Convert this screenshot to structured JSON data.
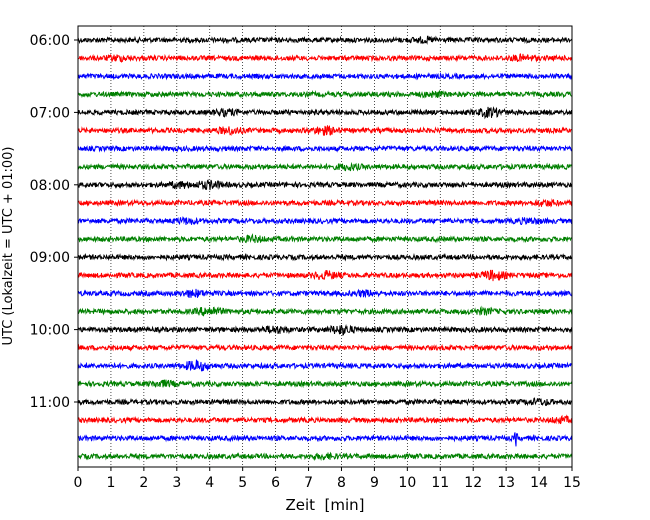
{
  "chart_data": {
    "type": "line",
    "chart_kind": "helicorder seismogram (stacked traces)",
    "xlabel": "Zeit  [min]",
    "ylabel": "UTC (Lokalzeit = UTC + 01:00)",
    "xlim": [
      0,
      15
    ],
    "x_ticks": [
      "0",
      "1",
      "2",
      "3",
      "4",
      "5",
      "6",
      "7",
      "8",
      "9",
      "10",
      "11",
      "12",
      "13",
      "14",
      "15"
    ],
    "y_tick_labels": [
      "06:00",
      "07:00",
      "08:00",
      "09:00",
      "10:00",
      "11:00"
    ],
    "row_interval_minutes": 15,
    "row_start_times": [
      "06:00",
      "06:15",
      "06:30",
      "06:45",
      "07:00",
      "07:15",
      "07:30",
      "07:45",
      "08:00",
      "08:15",
      "08:30",
      "08:45",
      "09:00",
      "09:15",
      "09:30",
      "09:45",
      "10:00",
      "10:15",
      "10:30",
      "10:45",
      "11:00",
      "11:15",
      "11:30",
      "11:45"
    ],
    "trace_colors": [
      "#000000",
      "#ff0000",
      "#0000ff",
      "#008000"
    ],
    "grid": {
      "vertical": true,
      "style": "dotted"
    },
    "bursts": [
      {
        "row": 0,
        "minute": 10.5,
        "amplitude": 1.5
      },
      {
        "row": 1,
        "minute": 1.2,
        "amplitude": 1.8
      },
      {
        "row": 1,
        "minute": 13.5,
        "amplitude": 2.0
      },
      {
        "row": 3,
        "minute": 10.8,
        "amplitude": 1.6
      },
      {
        "row": 4,
        "minute": 4.5,
        "amplitude": 2.2
      },
      {
        "row": 4,
        "minute": 12.5,
        "amplitude": 3.5
      },
      {
        "row": 5,
        "minute": 4.6,
        "amplitude": 2.5
      },
      {
        "row": 5,
        "minute": 7.5,
        "amplitude": 3.0
      },
      {
        "row": 7,
        "minute": 8.2,
        "amplitude": 2.0
      },
      {
        "row": 8,
        "minute": 3.1,
        "amplitude": 2.0
      },
      {
        "row": 8,
        "minute": 4.0,
        "amplitude": 3.0
      },
      {
        "row": 9,
        "minute": 14.2,
        "amplitude": 1.8
      },
      {
        "row": 10,
        "minute": 3.3,
        "amplitude": 2.0
      },
      {
        "row": 10,
        "minute": 13.7,
        "amplitude": 1.8
      },
      {
        "row": 11,
        "minute": 5.3,
        "amplitude": 2.0
      },
      {
        "row": 13,
        "minute": 7.5,
        "amplitude": 3.0
      },
      {
        "row": 13,
        "minute": 12.6,
        "amplitude": 3.5
      },
      {
        "row": 14,
        "minute": 3.5,
        "amplitude": 2.5
      },
      {
        "row": 14,
        "minute": 8.7,
        "amplitude": 1.8
      },
      {
        "row": 15,
        "minute": 4.0,
        "amplitude": 3.5
      },
      {
        "row": 15,
        "minute": 12.3,
        "amplitude": 1.8
      },
      {
        "row": 16,
        "minute": 8.0,
        "amplitude": 3.5
      },
      {
        "row": 16,
        "minute": 6.0,
        "amplitude": 2.5
      },
      {
        "row": 18,
        "minute": 3.6,
        "amplitude": 4.0
      },
      {
        "row": 19,
        "minute": 2.6,
        "amplitude": 2.0
      },
      {
        "row": 20,
        "minute": 14.0,
        "amplitude": 2.0
      },
      {
        "row": 21,
        "minute": 14.7,
        "amplitude": 1.8
      },
      {
        "row": 22,
        "minute": 13.3,
        "amplitude": 7.0
      },
      {
        "row": 23,
        "minute": 7.5,
        "amplitude": 1.5
      }
    ]
  }
}
